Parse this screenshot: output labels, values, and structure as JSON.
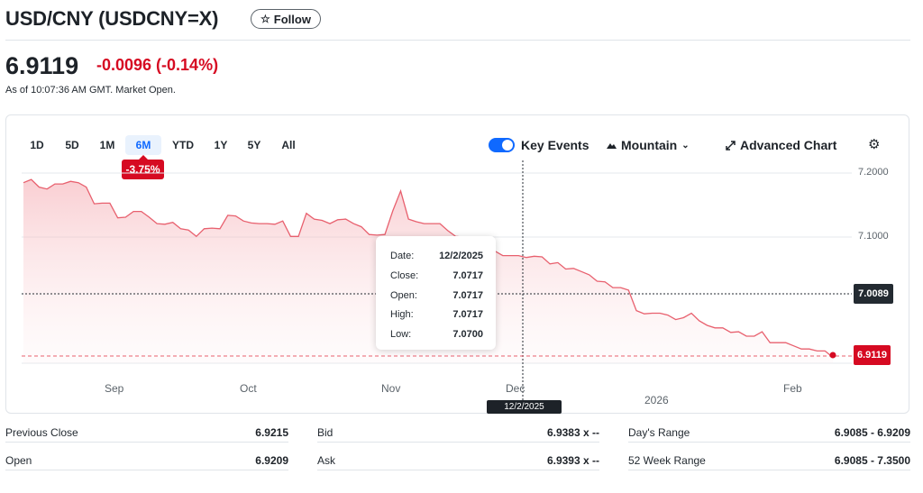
{
  "header": {
    "title": "USD/CNY (USDCNY=X)",
    "follow_label": "Follow",
    "price": "6.9119",
    "change": "-0.0096 (-0.14%)",
    "as_of": "As of 10:07:36 AM GMT. Market Open."
  },
  "toolbar": {
    "ranges": [
      "1D",
      "5D",
      "1M",
      "6M",
      "YTD",
      "1Y",
      "5Y",
      "All"
    ],
    "active_range": "6M",
    "range_change": "-3.75%",
    "key_events_label": "Key Events",
    "key_events_on": true,
    "chart_type_label": "Mountain",
    "advanced_chart_label": "Advanced Chart"
  },
  "chart_data": {
    "type": "area",
    "x_labels": [
      "Sep",
      "Oct",
      "Nov",
      "Dec",
      "2026",
      "Feb"
    ],
    "y_ticks": [
      "7.2000",
      "7.1000"
    ],
    "ylim": [
      6.88,
      7.23
    ],
    "crosshair_value": "7.0089",
    "crosshair_date": "12/2/2025",
    "last_value": "6.9119",
    "grid": true,
    "series": [
      {
        "values": [
          7.185,
          7.19,
          7.178,
          7.175,
          7.183,
          7.183,
          7.187,
          7.185,
          7.178,
          7.152,
          7.153,
          7.153,
          7.13,
          7.131,
          7.14,
          7.14,
          7.131,
          7.121,
          7.12,
          7.123,
          7.113,
          7.111,
          7.101,
          7.113,
          7.114,
          7.113,
          7.134,
          7.133,
          7.125,
          7.122,
          7.121,
          7.121,
          7.12,
          7.125,
          7.101,
          7.101,
          7.137,
          7.128,
          7.126,
          7.121,
          7.127,
          7.128,
          7.121,
          7.116,
          7.104,
          7.103,
          7.104,
          7.141,
          7.172,
          7.128,
          7.124,
          7.121,
          7.121,
          7.121,
          7.11,
          7.101,
          7.1,
          7.097,
          7.08,
          7.08,
          7.078,
          7.071,
          7.071,
          7.071,
          7.068,
          7.07,
          7.069,
          7.058,
          7.06,
          7.05,
          7.051,
          7.046,
          7.041,
          7.031,
          7.03,
          7.021,
          7.021,
          7.017,
          6.985,
          6.98,
          6.981,
          6.981,
          6.978,
          6.971,
          6.974,
          6.981,
          6.969,
          6.962,
          6.958,
          6.958,
          6.951,
          6.952,
          6.945,
          6.945,
          6.952,
          6.935,
          6.935,
          6.935,
          6.93,
          6.925,
          6.925,
          6.922,
          6.922,
          6.912
        ]
      }
    ]
  },
  "tooltip": {
    "date_label": "Date:",
    "date": "12/2/2025",
    "close_label": "Close:",
    "close": "7.0717",
    "open_label": "Open:",
    "open": "7.0717",
    "high_label": "High:",
    "high": "7.0717",
    "low_label": "Low:",
    "low": "7.0700"
  },
  "stats": {
    "previous_close_label": "Previous Close",
    "previous_close": "6.9215",
    "open_label": "Open",
    "open": "6.9209",
    "bid_label": "Bid",
    "bid": "6.9383 x --",
    "ask_label": "Ask",
    "ask": "6.9393 x --",
    "days_range_label": "Day's Range",
    "days_range": "6.9085 - 6.9209",
    "week52_label": "52 Week Range",
    "week52": "6.9085 - 7.3500"
  },
  "colors": {
    "accent": "#0f69ff",
    "down": "#d60a22",
    "line": "#e8606e"
  }
}
